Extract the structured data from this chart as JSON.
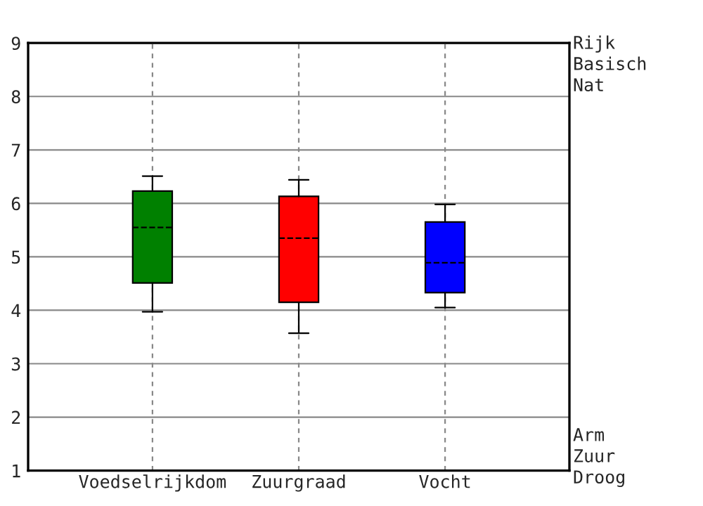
{
  "chart_data": {
    "type": "box",
    "categories": [
      "Voedselrijkdom",
      "Zuurgraad",
      "Vocht"
    ],
    "boxes": [
      {
        "low": 3.97,
        "q1": 4.51,
        "median": 5.55,
        "q3": 6.23,
        "high": 6.51
      },
      {
        "low": 3.57,
        "q1": 4.15,
        "median": 5.35,
        "q3": 6.13,
        "high": 6.44
      },
      {
        "low": 4.05,
        "q1": 4.33,
        "median": 4.89,
        "q3": 5.65,
        "high": 5.98
      }
    ],
    "colors": [
      "#008000",
      "#ff0000",
      "#0000ff"
    ],
    "ylim": [
      1,
      9
    ],
    "yticks": [
      1,
      2,
      3,
      4,
      5,
      6,
      7,
      8,
      9
    ],
    "grid": true,
    "annotations": [
      "Rijk\nBasisch\nNat",
      "Arm\nZuur\nDroog"
    ]
  }
}
